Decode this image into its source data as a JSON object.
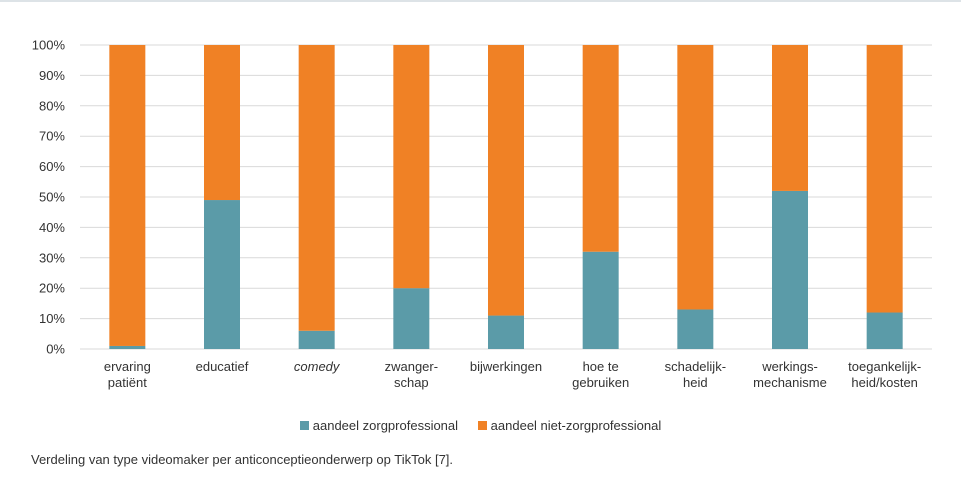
{
  "chart_data": {
    "type": "bar",
    "stacked": true,
    "categories": [
      [
        "ervaring",
        "patiënt"
      ],
      [
        "educatief"
      ],
      [
        "comedy"
      ],
      [
        "zwanger-",
        "schap"
      ],
      [
        "bijwerkingen"
      ],
      [
        "hoe te",
        "gebruiken"
      ],
      [
        "schadelijk-",
        "heid"
      ],
      [
        "werkings-",
        "mechanisme"
      ],
      [
        "toegankelijk-",
        "heid/kosten"
      ]
    ],
    "italic_categories": [
      "comedy"
    ],
    "series": [
      {
        "name": "aandeel zorgprofessional",
        "color": "#5b9ba8",
        "values": [
          1,
          49,
          6,
          20,
          11,
          32,
          13,
          52,
          12
        ]
      },
      {
        "name": "aandeel niet-zorgprofessional",
        "color": "#f08125",
        "values": [
          99,
          51,
          94,
          80,
          89,
          68,
          87,
          48,
          88
        ]
      }
    ],
    "ylim": [
      0,
      100
    ],
    "yticks": [
      "0%",
      "10%",
      "20%",
      "30%",
      "40%",
      "50%",
      "60%",
      "70%",
      "80%",
      "90%",
      "100%"
    ],
    "grid": true,
    "legend_position": "bottom"
  },
  "caption": "Verdeling van type videomaker per anticonceptieonderwerp op TikTok [7]."
}
